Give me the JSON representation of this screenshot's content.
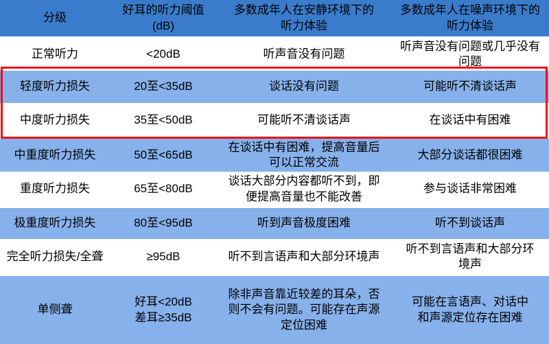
{
  "colors": {
    "header_bg": "#3a7ccb",
    "row_alt_bg": "#87b1eb",
    "row_bg": "#ffffff",
    "text": "#000000",
    "highlight_border": "#f10e0e"
  },
  "table": {
    "headers": [
      "分级",
      "好耳的听力阈值\n(dB)",
      "多数成年人在安静环境下的\n听力体验",
      "多数成年人在噪声环境下的\n听力体验"
    ],
    "rows": [
      {
        "grade": "正常听力",
        "threshold": "<20dB",
        "quiet": "听声音没有问题",
        "noisy": "听声音没有问题或几乎没有\n问题"
      },
      {
        "grade": "轻度听力损失",
        "threshold": "20至<35dB",
        "quiet": "谈话没有问题",
        "noisy": "可能听不清谈话声"
      },
      {
        "grade": "中度听力损失",
        "threshold": "35至<50dB",
        "quiet": "可能听不清谈话声",
        "noisy": "在谈话中有困难"
      },
      {
        "grade": "中重度听力损失",
        "threshold": "50至<65dB",
        "quiet": "在谈话中有困难，提高音量后\n可以正常交流",
        "noisy": "大部分谈话都很困难"
      },
      {
        "grade": "重度听力损失",
        "threshold": "65至<80dB",
        "quiet": "谈话大部分内容都听不到，即\n便提高音量也不能改善",
        "noisy": "参与谈话非常困难"
      },
      {
        "grade": "极重度听力损失",
        "threshold": "80至<95dB",
        "quiet": "听到声音极度困难",
        "noisy": "听不到谈话声"
      },
      {
        "grade": "完全听力损失/全聋",
        "threshold": "≥95dB",
        "quiet": "听不到言语声和大部分环境声",
        "noisy": "听不到言语声和大部分环\n境声"
      },
      {
        "grade": "单侧聋",
        "threshold": "好耳<20dB\n差耳≥35dB",
        "quiet": "除非声音靠近较差的耳朵，否\n则不会有问题。可能存在声源\n定位困难",
        "noisy": "可能在言语声、对话中\n和声源定位存在困难"
      }
    ],
    "highlighted_grades": [
      "轻度听力损失",
      "中度听力损失"
    ]
  }
}
